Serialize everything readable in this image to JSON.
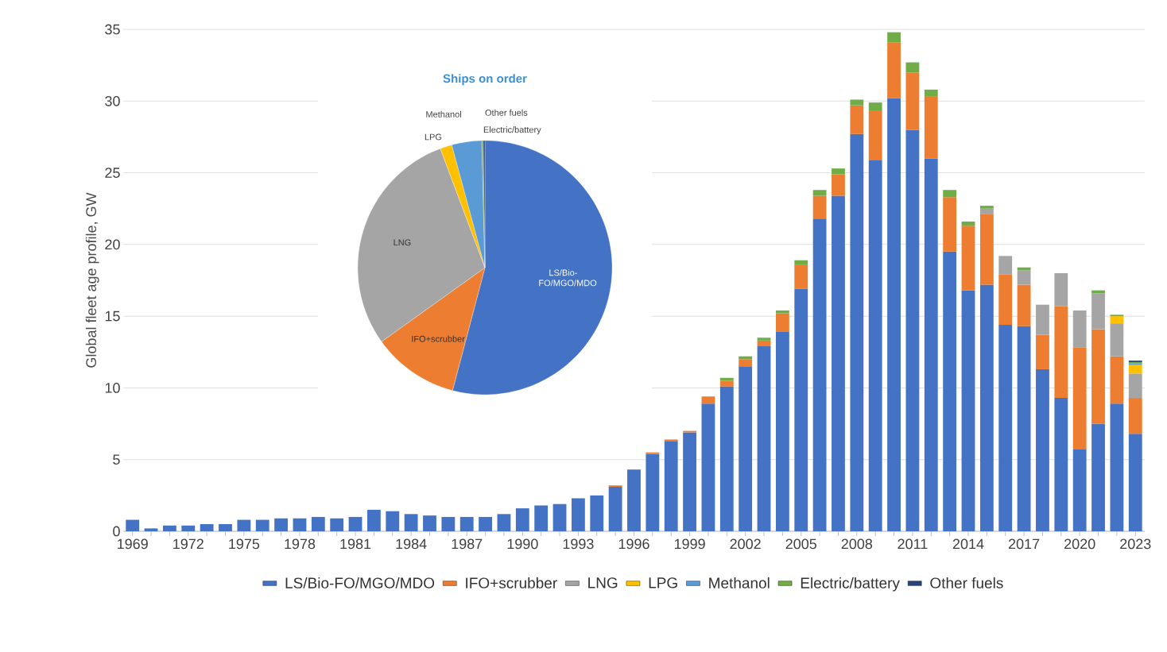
{
  "chart_data": [
    {
      "type": "bar",
      "stacked": true,
      "ylabel": "Global fleet age profile, GW",
      "ylim": [
        0,
        35
      ],
      "yticks": [
        0,
        5,
        10,
        15,
        20,
        25,
        30,
        35
      ],
      "grid": "y",
      "legend": "bottom",
      "categories": [
        "1969",
        null,
        null,
        "1972",
        null,
        null,
        "1975",
        null,
        null,
        "1978",
        null,
        null,
        "1981",
        null,
        null,
        "1984",
        null,
        null,
        "1987",
        null,
        null,
        "1990",
        null,
        null,
        "1993",
        null,
        null,
        "1996",
        null,
        null,
        "1999",
        null,
        null,
        "2002",
        null,
        null,
        "2005",
        null,
        null,
        "2008",
        null,
        null,
        "2011",
        null,
        null,
        "2014",
        null,
        null,
        "2017",
        null,
        null,
        "2020",
        null,
        null,
        "2023"
      ],
      "series": [
        {
          "name": "LS/Bio-FO/MGO/MDO",
          "color": "#4472c4",
          "values": [
            0.8,
            0.2,
            0.4,
            0.4,
            0.5,
            0.5,
            0.8,
            0.8,
            0.9,
            0.9,
            1.0,
            0.9,
            1.0,
            1.5,
            1.4,
            1.2,
            1.1,
            1.0,
            1.0,
            1.0,
            1.2,
            1.6,
            1.8,
            1.9,
            2.3,
            2.5,
            3.1,
            4.3,
            5.4,
            6.3,
            6.9,
            8.9,
            10.1,
            11.5,
            12.9,
            13.9,
            16.9,
            21.8,
            23.4,
            27.7,
            25.9,
            30.2,
            28.0,
            26.0,
            19.5,
            16.8,
            17.2,
            14.4,
            14.3,
            11.3,
            9.3,
            5.7,
            7.5,
            8.9,
            6.8
          ]
        },
        {
          "name": "IFO+scrubber",
          "color": "#ed7d31",
          "values": [
            null,
            null,
            null,
            null,
            null,
            null,
            null,
            null,
            null,
            null,
            null,
            null,
            null,
            null,
            null,
            null,
            null,
            null,
            null,
            null,
            null,
            null,
            null,
            null,
            null,
            null,
            0.1,
            null,
            0.1,
            0.1,
            0.1,
            0.5,
            0.4,
            0.5,
            0.4,
            1.3,
            1.7,
            1.6,
            1.5,
            2.0,
            3.4,
            3.9,
            4.0,
            4.3,
            3.8,
            4.5,
            4.9,
            3.5,
            2.9,
            2.4,
            6.4,
            7.1,
            6.6,
            3.3,
            2.5
          ]
        },
        {
          "name": "LNG",
          "color": "#a5a5a5",
          "values": [
            null,
            null,
            null,
            null,
            null,
            null,
            null,
            null,
            null,
            null,
            null,
            null,
            null,
            null,
            null,
            null,
            null,
            null,
            null,
            null,
            null,
            null,
            null,
            null,
            null,
            null,
            null,
            null,
            null,
            null,
            null,
            null,
            null,
            null,
            null,
            null,
            null,
            null,
            null,
            null,
            null,
            null,
            null,
            null,
            null,
            null,
            0.4,
            1.3,
            1.0,
            2.1,
            2.3,
            2.6,
            2.5,
            2.3,
            1.7
          ]
        },
        {
          "name": "LPG",
          "color": "#ffc000",
          "values": [
            null,
            null,
            null,
            null,
            null,
            null,
            null,
            null,
            null,
            null,
            null,
            null,
            null,
            null,
            null,
            null,
            null,
            null,
            null,
            null,
            null,
            null,
            null,
            null,
            null,
            null,
            null,
            null,
            null,
            null,
            null,
            null,
            null,
            null,
            null,
            null,
            null,
            null,
            null,
            null,
            null,
            null,
            null,
            null,
            null,
            null,
            null,
            null,
            null,
            null,
            null,
            null,
            null,
            0.5,
            0.6
          ]
        },
        {
          "name": "Methanol",
          "color": "#5b9bd5",
          "values": [
            null,
            null,
            null,
            null,
            null,
            null,
            null,
            null,
            null,
            null,
            null,
            null,
            null,
            null,
            null,
            null,
            null,
            null,
            null,
            null,
            null,
            null,
            null,
            null,
            null,
            null,
            null,
            null,
            null,
            null,
            null,
            null,
            null,
            null,
            null,
            null,
            null,
            null,
            null,
            null,
            null,
            null,
            null,
            null,
            null,
            null,
            null,
            null,
            null,
            null,
            null,
            null,
            null,
            null,
            0.1
          ]
        },
        {
          "name": "Electric/battery",
          "color": "#70ad47",
          "values": [
            null,
            null,
            null,
            null,
            null,
            null,
            null,
            null,
            null,
            null,
            null,
            null,
            null,
            null,
            null,
            null,
            null,
            null,
            null,
            null,
            null,
            null,
            null,
            null,
            null,
            null,
            null,
            null,
            null,
            null,
            null,
            null,
            0.2,
            0.2,
            0.2,
            0.2,
            0.3,
            0.4,
            0.4,
            0.4,
            0.6,
            0.7,
            0.7,
            0.5,
            0.5,
            0.3,
            0.2,
            null,
            0.2,
            null,
            null,
            null,
            0.2,
            0.1,
            0.1
          ]
        },
        {
          "name": "Other fuels",
          "color": "#264478",
          "values": [
            null,
            null,
            null,
            null,
            null,
            null,
            null,
            null,
            null,
            null,
            null,
            null,
            null,
            null,
            null,
            null,
            null,
            null,
            null,
            null,
            null,
            null,
            null,
            null,
            null,
            null,
            null,
            null,
            null,
            null,
            null,
            null,
            null,
            null,
            null,
            null,
            null,
            null,
            null,
            null,
            null,
            null,
            null,
            null,
            null,
            null,
            null,
            null,
            null,
            null,
            null,
            null,
            null,
            null,
            0.1
          ]
        }
      ]
    },
    {
      "type": "pie",
      "title": "Ships on order",
      "categories": [
        "LS/Bio-FO/MGO/MDO",
        "IFO+scrubber",
        "LNG",
        "LPG",
        "Methanol",
        "Electric/battery",
        "Other fuels"
      ],
      "values": [
        54.1,
        11.0,
        29.2,
        1.5,
        3.8,
        0.2,
        0.2
      ],
      "colors": [
        "#4472c4",
        "#ed7d31",
        "#a5a5a5",
        "#ffc000",
        "#5b9bd5",
        "#70ad47",
        "#264478"
      ]
    }
  ]
}
